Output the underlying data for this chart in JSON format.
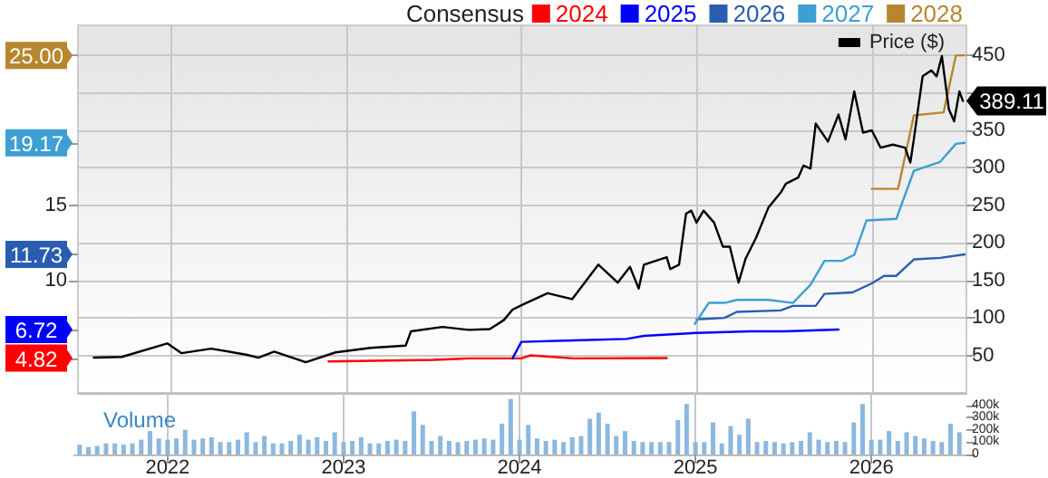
{
  "chart_data": [
    {
      "type": "line",
      "legend_title": "Consensus",
      "legend": "top right",
      "grid": true,
      "marker": "none",
      "tick_labels": "y",
      "xlim": [
        2021.47,
        2026.54
      ],
      "xticks": [
        2022,
        2023,
        2024,
        2025,
        2026
      ],
      "ylim": [
        0,
        490
      ],
      "yticks": [
        50,
        100,
        150,
        200,
        250,
        300,
        350,
        {
          "value": 400,
          "label": null
        },
        450
      ],
      "y2lim": [
        2.5,
        27
      ],
      "y2ticks": [
        {
          "value": 4.82,
          "label": "4.82"
        },
        {
          "value": 6.72,
          "label": "6.72"
        },
        10,
        {
          "value": 11.73,
          "label": "11.73"
        },
        15,
        {
          "value": 19.17,
          "label": "19.17"
        },
        {
          "value": 25,
          "label": "25.00"
        }
      ],
      "series": [
        {
          "name": "Price ($)",
          "color": "#000000",
          "x": [
            2021.56,
            2021.72,
            2021.98,
            2022.06,
            2022.23,
            2022.43,
            2022.5,
            2022.59,
            2022.77,
            2022.94,
            2023.14,
            2023.34,
            2023.37,
            2023.55,
            2023.7,
            2023.82,
            2023.9,
            2023.95,
            2024.02,
            2024.15,
            2024.29,
            2024.44,
            2024.55,
            2024.62,
            2024.67,
            2024.7,
            2024.83,
            2024.85,
            2024.9,
            2024.94,
            2024.97,
            2025.0,
            2025.04,
            2025.1,
            2025.15,
            2025.19,
            2025.24,
            2025.28,
            2025.34,
            2025.41,
            2025.48,
            2025.51,
            2025.58,
            2025.61,
            2025.65,
            2025.68,
            2025.75,
            2025.81,
            2025.85,
            2025.9,
            2025.95,
            2026.0,
            2026.05,
            2026.12,
            2026.19,
            2026.22,
            2026.24,
            2026.29,
            2026.34,
            2026.37,
            2026.4,
            2026.44,
            2026.47,
            2026.5,
            2026.52
          ],
          "values": [
            47,
            48,
            66,
            53,
            59,
            51,
            47,
            55,
            41,
            54,
            60,
            63,
            82,
            88,
            84,
            85,
            97,
            111,
            119,
            133,
            125,
            171,
            147,
            168,
            139,
            171,
            181,
            165,
            171,
            239,
            243,
            227,
            243,
            227,
            195,
            195,
            147,
            179,
            207,
            247,
            267,
            279,
            287,
            303,
            299,
            359,
            335,
            371,
            338,
            402,
            347,
            350,
            327,
            331,
            327,
            307,
            338,
            422,
            430,
            422,
            449,
            378,
            362,
            402,
            389.11
          ],
          "value_labels": [
            null,
            null,
            null,
            null,
            null,
            null,
            null,
            null,
            null,
            null,
            null,
            null,
            null,
            null,
            null,
            null,
            null,
            null,
            null,
            null,
            null,
            null,
            null,
            null,
            null,
            null,
            null,
            null,
            null,
            null,
            null,
            null,
            null,
            null,
            null,
            null,
            null,
            null,
            null,
            null,
            null,
            null,
            null,
            null,
            null,
            null,
            null,
            null,
            null,
            null,
            null,
            null,
            null,
            null,
            null,
            null,
            null,
            null,
            null,
            null,
            null,
            null,
            null,
            null,
            "389.11"
          ]
        },
        {
          "name": "2024",
          "color": "#ff0000",
          "axis": "y2",
          "x": [
            2022.9,
            2023.5,
            2023.7,
            2024.0,
            2024.05,
            2024.3,
            2024.83
          ],
          "values": [
            4.6,
            4.7,
            4.8,
            4.8,
            5.0,
            4.8,
            4.82
          ]
        },
        {
          "name": "2025",
          "color": "#0000ff",
          "axis": "y2",
          "x": [
            2023.95,
            2024.0,
            2024.3,
            2024.6,
            2024.7,
            2025.0,
            2025.3,
            2025.5,
            2025.81
          ],
          "values": [
            4.8,
            5.9,
            6.0,
            6.1,
            6.3,
            6.5,
            6.6,
            6.6,
            6.72
          ]
        },
        {
          "name": "2026",
          "color": "#2a5db0",
          "axis": "y2",
          "x": [
            2025.0,
            2025.16,
            2025.23,
            2025.48,
            2025.55,
            2025.68,
            2025.73,
            2025.89,
            2026.0,
            2026.07,
            2026.14,
            2026.24,
            2026.39,
            2026.53
          ],
          "values": [
            7.4,
            7.5,
            7.9,
            8.0,
            8.3,
            8.3,
            9.1,
            9.2,
            9.8,
            10.3,
            10.3,
            11.4,
            11.5,
            11.73
          ]
        },
        {
          "name": "2027",
          "color": "#3d9fd3",
          "axis": "y2",
          "x": [
            2024.99,
            2025.07,
            2025.16,
            2025.23,
            2025.41,
            2025.55,
            2025.65,
            2025.73,
            2025.83,
            2025.9,
            2025.97,
            2026.14,
            2026.24,
            2026.39,
            2026.48,
            2026.53
          ],
          "values": [
            7.1,
            8.5,
            8.5,
            8.7,
            8.7,
            8.5,
            9.7,
            11.3,
            11.3,
            11.7,
            14.0,
            14.1,
            17.3,
            17.9,
            19.1,
            19.17
          ]
        },
        {
          "name": "2028",
          "color": "#b8862e",
          "axis": "y2",
          "x": [
            2026.0,
            2026.15,
            2026.24,
            2026.41,
            2026.48,
            2026.53
          ],
          "values": [
            16.1,
            16.1,
            21.0,
            21.2,
            25.0,
            25.0
          ]
        }
      ]
    },
    {
      "type": "bar",
      "title": "Volume",
      "color": "#8ab8e0",
      "grid": "x",
      "xlim": [
        2021.47,
        2026.54
      ],
      "xticks": [
        2022,
        2023,
        2024,
        2025,
        2026
      ],
      "ylim": [
        0,
        500000
      ],
      "yticks": [
        0,
        {
          "value": 100000,
          "label": "100k"
        },
        {
          "value": 200000,
          "label": "200k"
        },
        {
          "value": 300000,
          "label": "300k"
        },
        {
          "value": 400000,
          "label": "400k"
        }
      ],
      "x": [
        2021.5,
        2021.55,
        2021.6,
        2021.65,
        2021.7,
        2021.75,
        2021.8,
        2021.85,
        2021.9,
        2021.95,
        2022.0,
        2022.05,
        2022.1,
        2022.15,
        2022.2,
        2022.25,
        2022.3,
        2022.35,
        2022.4,
        2022.45,
        2022.5,
        2022.55,
        2022.6,
        2022.65,
        2022.7,
        2022.75,
        2022.8,
        2022.85,
        2022.9,
        2022.95,
        2023.0,
        2023.05,
        2023.1,
        2023.15,
        2023.2,
        2023.25,
        2023.3,
        2023.35,
        2023.4,
        2023.45,
        2023.5,
        2023.55,
        2023.6,
        2023.65,
        2023.7,
        2023.75,
        2023.8,
        2023.85,
        2023.9,
        2023.95,
        2024.0,
        2024.05,
        2024.1,
        2024.15,
        2024.2,
        2024.25,
        2024.3,
        2024.35,
        2024.4,
        2024.45,
        2024.5,
        2024.55,
        2024.6,
        2024.65,
        2024.7,
        2024.75,
        2024.8,
        2024.85,
        2024.9,
        2024.95,
        2025.0,
        2025.05,
        2025.1,
        2025.15,
        2025.2,
        2025.25,
        2025.3,
        2025.35,
        2025.4,
        2025.45,
        2025.5,
        2025.55,
        2025.6,
        2025.65,
        2025.7,
        2025.75,
        2025.8,
        2025.85,
        2025.9,
        2025.95,
        2026.0,
        2026.05,
        2026.1,
        2026.15,
        2026.2,
        2026.25,
        2026.3,
        2026.35,
        2026.4,
        2026.45,
        2026.5
      ],
      "values": [
        80000,
        60000,
        70000,
        90000,
        90000,
        80000,
        90000,
        120000,
        190000,
        130000,
        120000,
        130000,
        200000,
        120000,
        130000,
        140000,
        100000,
        100000,
        120000,
        180000,
        100000,
        150000,
        90000,
        90000,
        110000,
        160000,
        120000,
        140000,
        110000,
        180000,
        100000,
        110000,
        140000,
        90000,
        90000,
        110000,
        120000,
        110000,
        350000,
        240000,
        110000,
        150000,
        110000,
        100000,
        110000,
        120000,
        130000,
        120000,
        250000,
        450000,
        120000,
        240000,
        130000,
        110000,
        120000,
        100000,
        140000,
        150000,
        290000,
        340000,
        250000,
        150000,
        190000,
        110000,
        100000,
        100000,
        100000,
        100000,
        280000,
        410000,
        100000,
        100000,
        260000,
        90000,
        230000,
        160000,
        290000,
        100000,
        110000,
        100000,
        90000,
        100000,
        110000,
        180000,
        120000,
        100000,
        110000,
        100000,
        260000,
        410000,
        120000,
        120000,
        190000,
        110000,
        180000,
        150000,
        130000,
        110000,
        100000,
        250000,
        180000
      ]
    }
  ]
}
